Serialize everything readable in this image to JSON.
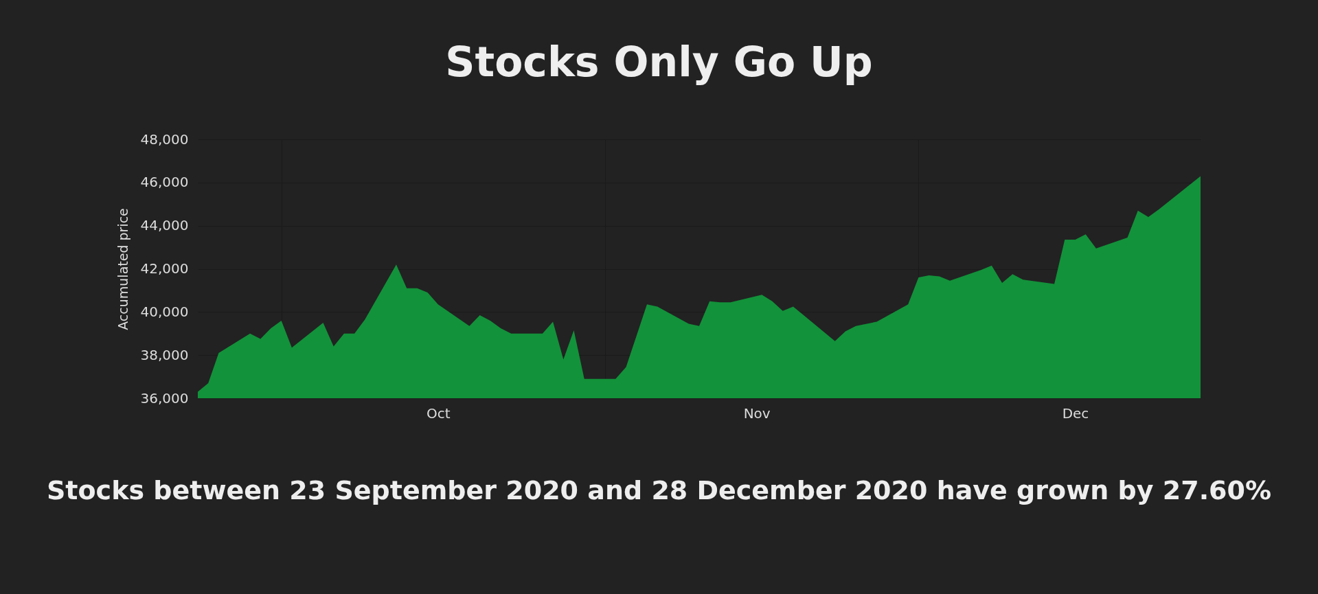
{
  "chart_data": {
    "type": "area",
    "title": "Stocks Only Go Up",
    "ylabel": "Accumulated price",
    "x": [
      "2020-09-23",
      "2020-09-24",
      "2020-09-25",
      "2020-09-28",
      "2020-09-29",
      "2020-09-30",
      "2020-10-01",
      "2020-10-02",
      "2020-10-05",
      "2020-10-06",
      "2020-10-07",
      "2020-10-08",
      "2020-10-09",
      "2020-10-12",
      "2020-10-13",
      "2020-10-14",
      "2020-10-15",
      "2020-10-16",
      "2020-10-19",
      "2020-10-20",
      "2020-10-21",
      "2020-10-22",
      "2020-10-23",
      "2020-10-26",
      "2020-10-27",
      "2020-10-28",
      "2020-10-29",
      "2020-10-30",
      "2020-11-02",
      "2020-11-03",
      "2020-11-04",
      "2020-11-05",
      "2020-11-06",
      "2020-11-09",
      "2020-11-10",
      "2020-11-11",
      "2020-11-12",
      "2020-11-13",
      "2020-11-16",
      "2020-11-17",
      "2020-11-18",
      "2020-11-19",
      "2020-11-20",
      "2020-11-23",
      "2020-11-24",
      "2020-11-25",
      "2020-11-27",
      "2020-11-30",
      "2020-12-01",
      "2020-12-02",
      "2020-12-03",
      "2020-12-04",
      "2020-12-07",
      "2020-12-08",
      "2020-12-09",
      "2020-12-10",
      "2020-12-11",
      "2020-12-14",
      "2020-12-15",
      "2020-12-16",
      "2020-12-17",
      "2020-12-18",
      "2020-12-21",
      "2020-12-22",
      "2020-12-23",
      "2020-12-24",
      "2020-12-28"
    ],
    "series": [
      {
        "color": "#12923a",
        "values": [
          36300,
          36700,
          38100,
          39000,
          38750,
          39250,
          39600,
          38350,
          39500,
          38400,
          39000,
          39000,
          39650,
          42200,
          41100,
          41100,
          40900,
          40350,
          39350,
          39850,
          39600,
          39250,
          39000,
          39000,
          39550,
          37800,
          39150,
          36900,
          36900,
          37450,
          38900,
          40350,
          40250,
          39450,
          39350,
          40500,
          40450,
          40450,
          40800,
          40500,
          40050,
          40250,
          39850,
          38650,
          39100,
          39350,
          39550,
          40350,
          41600,
          41700,
          41650,
          41450,
          41950,
          42150,
          41350,
          41750,
          41500,
          41300,
          43350,
          43350,
          43600,
          42950,
          43450,
          44700,
          44400,
          44750,
          46300
        ]
      }
    ],
    "xlim": [
      "2020-09-23",
      "2020-12-28"
    ],
    "xticks": [
      {
        "value": "2020-10-01",
        "label": null
      },
      {
        "value": "2020-10-16",
        "label": "Oct"
      },
      {
        "value": "2020-11-01",
        "label": null
      },
      {
        "value": "2020-11-15T12:00",
        "label": "Nov"
      },
      {
        "value": "2020-12-01",
        "label": null
      },
      {
        "value": "2020-12-16",
        "label": "Dec"
      }
    ],
    "ylim": [
      36000,
      48000
    ],
    "yticks": [
      {
        "value": 36000,
        "label": "36,000"
      },
      {
        "value": 38000,
        "label": "38,000"
      },
      {
        "value": 40000,
        "label": "40,000"
      },
      {
        "value": 42000,
        "label": "42,000"
      },
      {
        "value": 44000,
        "label": "44,000"
      },
      {
        "value": 46000,
        "label": "46,000"
      },
      {
        "value": 48000,
        "label": "48,000"
      }
    ],
    "grid": true,
    "annotations": [
      "Stocks between 23 September 2020 and 28 December 2020 have grown by 27.60%"
    ]
  }
}
